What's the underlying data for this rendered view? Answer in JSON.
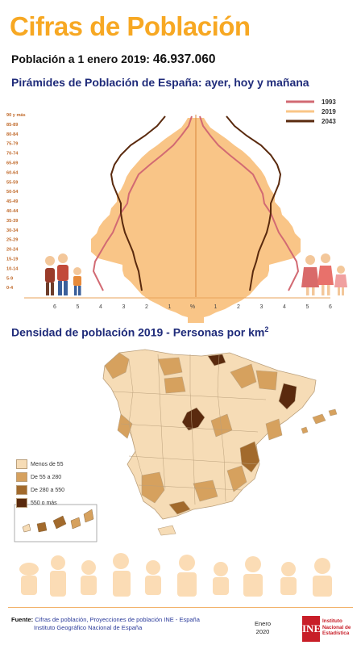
{
  "header": {
    "title": "Cifras de Población",
    "population_label": "Población a 1 enero 2019:",
    "population_value": "46.937.060"
  },
  "pyramid": {
    "title": "Pirámides de Población de España: ayer, hoy y mañana",
    "legend": [
      {
        "label": "1993",
        "color": "#d26a73"
      },
      {
        "label": "2019",
        "color": "#f9c587"
      },
      {
        "label": "2043",
        "color": "#5a2a0e"
      }
    ],
    "age_groups": [
      "90 y más",
      "85-89",
      "80-84",
      "75-79",
      "70-74",
      "65-69",
      "60-64",
      "55-59",
      "50-54",
      "45-49",
      "40-44",
      "35-39",
      "30-34",
      "25-29",
      "20-24",
      "15-19",
      "10-14",
      "5-9",
      "0-4"
    ],
    "x_labels": [
      "6",
      "5",
      "4",
      "3",
      "2",
      "1",
      "%",
      "1",
      "2",
      "3",
      "4",
      "5",
      "6"
    ]
  },
  "density": {
    "title": "Densidad de población 2019 - Personas por km",
    "title_sup": "2",
    "legend": [
      {
        "label": "Menos de 55",
        "color": "#f6dcb6"
      },
      {
        "label": "De 55 a 280",
        "color": "#d6a15e"
      },
      {
        "label": "De 280 a 550",
        "color": "#a26a2c"
      },
      {
        "label": "550 o más",
        "color": "#5a2a0e"
      }
    ]
  },
  "footer": {
    "source_label": "Fuente:",
    "source_line1": "Cifras de población, Proyecciones de población INE - España",
    "source_line2": "Instituto Geográfico Nacional de España",
    "date_month": "Enero",
    "date_year": "2020",
    "logo_text": "INE",
    "institute_line1": "Instituto",
    "institute_line2": "Nacional de",
    "institute_line3": "Estadística"
  }
}
